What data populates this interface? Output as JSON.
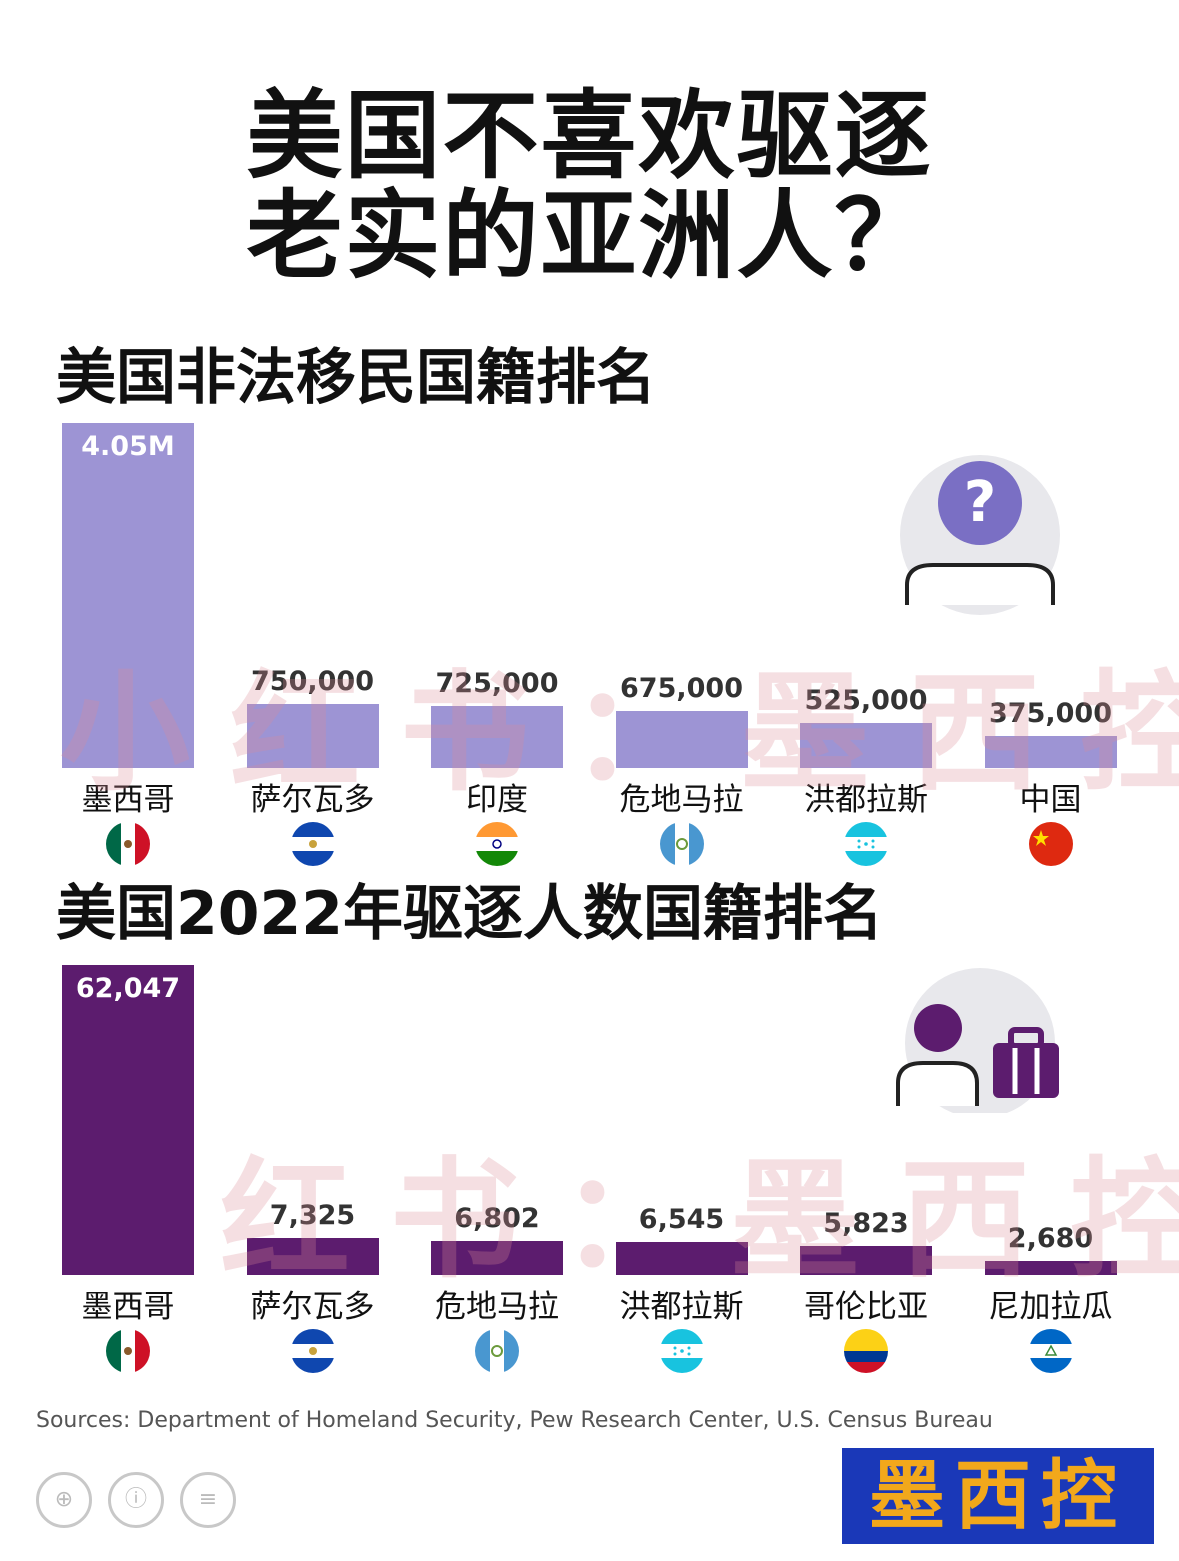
{
  "title": {
    "line1": "美国不喜欢驱逐",
    "line2": "老实的亚洲人？"
  },
  "chart_data": [
    {
      "type": "bar",
      "title": "美国非法移民国籍排名",
      "categories": [
        "墨西哥",
        "萨尔瓦多",
        "印度",
        "危地马拉",
        "洪都拉斯",
        "中国"
      ],
      "values": [
        4050000,
        750000,
        725000,
        675000,
        525000,
        375000
      ],
      "value_labels": [
        "4.05M",
        "750,000",
        "725,000",
        "675,000",
        "525,000",
        "375,000"
      ],
      "flags": [
        "mexico-flag-icon",
        "el-salvador-flag-icon",
        "india-flag-icon",
        "guatemala-flag-icon",
        "honduras-flag-icon",
        "china-flag-icon"
      ],
      "color": "#9d94d4",
      "ylim": [
        0,
        4050000
      ]
    },
    {
      "type": "bar",
      "title": "美国2022年驱逐人数国籍排名",
      "categories": [
        "墨西哥",
        "萨尔瓦多",
        "危地马拉",
        "洪都拉斯",
        "哥伦比亚",
        "尼加拉瓜"
      ],
      "values": [
        62047,
        7325,
        6802,
        6545,
        5823,
        2680
      ],
      "value_labels": [
        "62,047",
        "7,325",
        "6,802",
        "6,545",
        "5,823",
        "2,680"
      ],
      "flags": [
        "mexico-flag-icon",
        "el-salvador-flag-icon",
        "guatemala-flag-icon",
        "honduras-flag-icon",
        "colombia-flag-icon",
        "nicaragua-flag-icon"
      ],
      "color": "#5c1c6e",
      "ylim": [
        0,
        62047
      ]
    }
  ],
  "source": "Sources: Department of Homeland Security, Pew Research Center, U.S. Census Bureau",
  "brand": "墨西控",
  "watermark": {
    "text1": "小红书：墨西控",
    "text2": "红书：墨西控"
  },
  "decor_icons": [
    "question-person-icon",
    "deported-person-icon",
    "suitcase-icon"
  ]
}
